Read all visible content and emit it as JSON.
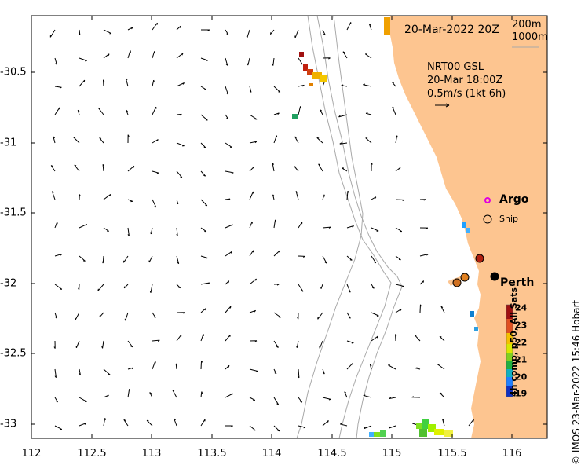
{
  "title_date": "20-Mar-2022 20Z",
  "depth_labels": [
    "200m",
    "1000m"
  ],
  "current_info": {
    "model": "NRT00 GSL",
    "time": "20-Mar 18:00Z",
    "scale": "0.5m/s (1kt 6h)"
  },
  "legend": {
    "argo_label": "Argo",
    "ship_label": "Ship",
    "argo_color": "#e000e0"
  },
  "place_label": "Perth",
  "colorbar": {
    "label": "4h comp, p50, All Sats",
    "ticks": [
      "24",
      "23",
      "22",
      "21",
      "20",
      "19"
    ],
    "range": [
      19,
      24
    ]
  },
  "copyright": "© IMOS 23-Mar-2022 15:46 Hobart",
  "axes": {
    "x_ticks": [
      "112",
      "112.5",
      "113",
      "113.5",
      "114",
      "114.5",
      "115",
      "115.5",
      "116"
    ],
    "y_ticks": [
      "-30.5",
      "-31",
      "-31.5",
      "-32",
      "-32.5",
      "-33"
    ],
    "xlim": [
      112,
      116.3
    ],
    "ylim": [
      -33.1,
      -30.1
    ]
  },
  "colors": {
    "land": "#fdc590",
    "isobath": "#a9a9a9"
  }
}
